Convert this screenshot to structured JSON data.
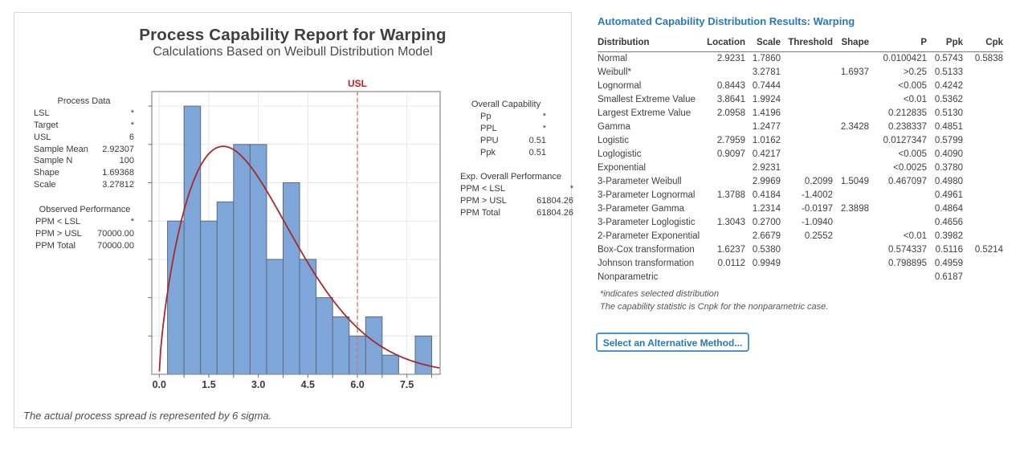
{
  "chart_panel": {
    "title": "Process Capability Report for Warping",
    "subtitle": "Calculations Based on Weibull Distribution Model",
    "usl_label": "USL",
    "footer_note": "The actual process spread is represented by 6 sigma.",
    "process_data": {
      "heading": "Process Data",
      "rows": [
        {
          "label": "LSL",
          "value": "*"
        },
        {
          "label": "Target",
          "value": "*"
        },
        {
          "label": "USL",
          "value": "6"
        },
        {
          "label": "Sample Mean",
          "value": "2.92307"
        },
        {
          "label": "Sample N",
          "value": "100"
        },
        {
          "label": "Shape",
          "value": "1.69368"
        },
        {
          "label": "Scale",
          "value": "3.27812"
        }
      ]
    },
    "observed_performance": {
      "heading": "Observed Performance",
      "rows": [
        {
          "label": "PPM < LSL",
          "value": "*"
        },
        {
          "label": "PPM > USL",
          "value": "70000.00"
        },
        {
          "label": "PPM Total",
          "value": "70000.00"
        }
      ]
    },
    "overall_capability": {
      "heading": "Overall Capability",
      "rows": [
        {
          "label": "Pp",
          "value": "*"
        },
        {
          "label": "PPL",
          "value": "*"
        },
        {
          "label": "PPU",
          "value": "0.51"
        },
        {
          "label": "Ppk",
          "value": "0.51"
        }
      ]
    },
    "exp_overall_performance": {
      "heading": "Exp. Overall Performance",
      "rows": [
        {
          "label": "PPM < LSL",
          "value": "*"
        },
        {
          "label": "PPM > USL",
          "value": "61804.26"
        },
        {
          "label": "PPM Total",
          "value": "61804.26"
        }
      ]
    }
  },
  "chart_data": {
    "type": "bar",
    "subtype": "histogram_with_weibull_fit",
    "title": "Process Capability Report for Warping",
    "xlabel": "",
    "ylabel": "",
    "bin_width": 0.5,
    "bin_centers": [
      0.5,
      1.0,
      1.5,
      2.0,
      2.5,
      3.0,
      3.5,
      4.0,
      4.5,
      5.0,
      5.5,
      6.0,
      6.5,
      7.0,
      7.5,
      8.0
    ],
    "counts": [
      8,
      14,
      8,
      9,
      12,
      12,
      6,
      10,
      6,
      4,
      3,
      2,
      3,
      1,
      0,
      2
    ],
    "sample_n": 100,
    "fit": {
      "distribution": "Weibull",
      "shape": 1.69368,
      "scale": 3.27812
    },
    "usl": 6,
    "x_ticks": [
      0.0,
      1.5,
      3.0,
      4.5,
      6.0,
      7.5
    ],
    "x_tick_labels": [
      "0.0",
      "1.5",
      "3.0",
      "4.5",
      "6.0",
      "7.5"
    ],
    "x_minor_ticks": [
      0.75,
      2.25,
      3.75,
      5.25,
      6.75,
      8.25
    ],
    "xlim": [
      -0.22,
      8.5
    ],
    "ylim_counts": [
      0,
      14.76
    ],
    "y_grid_step": 2,
    "grid": true,
    "colors": {
      "bar_fill": "#7ea6d9",
      "bar_stroke": "#5b6b7b",
      "curve": "#a52a2a",
      "usl_line": "#e4706c",
      "usl_label": "#be2222",
      "gridline": "#e7e7e7",
      "frame": "#8a8a8a"
    }
  },
  "results_panel": {
    "title": "Automated Capability Distribution Results: Warping",
    "table": {
      "columns": [
        "Distribution",
        "Location",
        "Scale",
        "Threshold",
        "Shape",
        "P",
        "Ppk",
        "Cpk"
      ],
      "rows": [
        [
          "Normal",
          "2.9231",
          "1.7860",
          "",
          "",
          "0.0100421",
          "0.5743",
          "0.5838"
        ],
        [
          "Weibull*",
          "",
          "3.2781",
          "",
          "1.6937",
          ">0.25",
          "0.5133",
          ""
        ],
        [
          "Lognormal",
          "0.8443",
          "0.7444",
          "",
          "",
          "<0.005",
          "0.4242",
          ""
        ],
        [
          "Smallest Extreme Value",
          "3.8641",
          "1.9924",
          "",
          "",
          "<0.01",
          "0.5362",
          ""
        ],
        [
          "Largest Extreme Value",
          "2.0958",
          "1.4196",
          "",
          "",
          "0.212835",
          "0.5130",
          ""
        ],
        [
          "Gamma",
          "",
          "1.2477",
          "",
          "2.3428",
          "0.238337",
          "0.4851",
          ""
        ],
        [
          "Logistic",
          "2.7959",
          "1.0162",
          "",
          "",
          "0.0127347",
          "0.5799",
          ""
        ],
        [
          "Loglogistic",
          "0.9097",
          "0.4217",
          "",
          "",
          "<0.005",
          "0.4090",
          ""
        ],
        [
          "Exponential",
          "",
          "2.9231",
          "",
          "",
          "<0.0025",
          "0.3780",
          ""
        ],
        [
          "3-Parameter Weibull",
          "",
          "2.9969",
          "0.2099",
          "1.5049",
          "0.467097",
          "0.4980",
          ""
        ],
        [
          "3-Parameter Lognormal",
          "1.3788",
          "0.4184",
          "-1.4002",
          "",
          "",
          "0.4961",
          ""
        ],
        [
          "3-Parameter Gamma",
          "",
          "1.2314",
          "-0.0197",
          "2.3898",
          "",
          "0.4864",
          ""
        ],
        [
          "3-Parameter Loglogistic",
          "1.3043",
          "0.2700",
          "-1.0940",
          "",
          "",
          "0.4656",
          ""
        ],
        [
          "2-Parameter Exponential",
          "",
          "2.6679",
          "0.2552",
          "",
          "<0.01",
          "0.3982",
          ""
        ],
        [
          "Box-Cox transformation",
          "1.6237",
          "0.5380",
          "",
          "",
          "0.574337",
          "0.5116",
          "0.5214"
        ],
        [
          "Johnson transformation",
          "0.0112",
          "0.9949",
          "",
          "",
          "0.798895",
          "0.4959",
          ""
        ],
        [
          "Nonparametric",
          "",
          "",
          "",
          "",
          "",
          "0.6187",
          ""
        ]
      ]
    },
    "footnotes": [
      "*indicates selected distribution",
      "The capability statistic is Cnpk for the nonparametric case."
    ],
    "button_label": "Select an Alternative Method..."
  }
}
